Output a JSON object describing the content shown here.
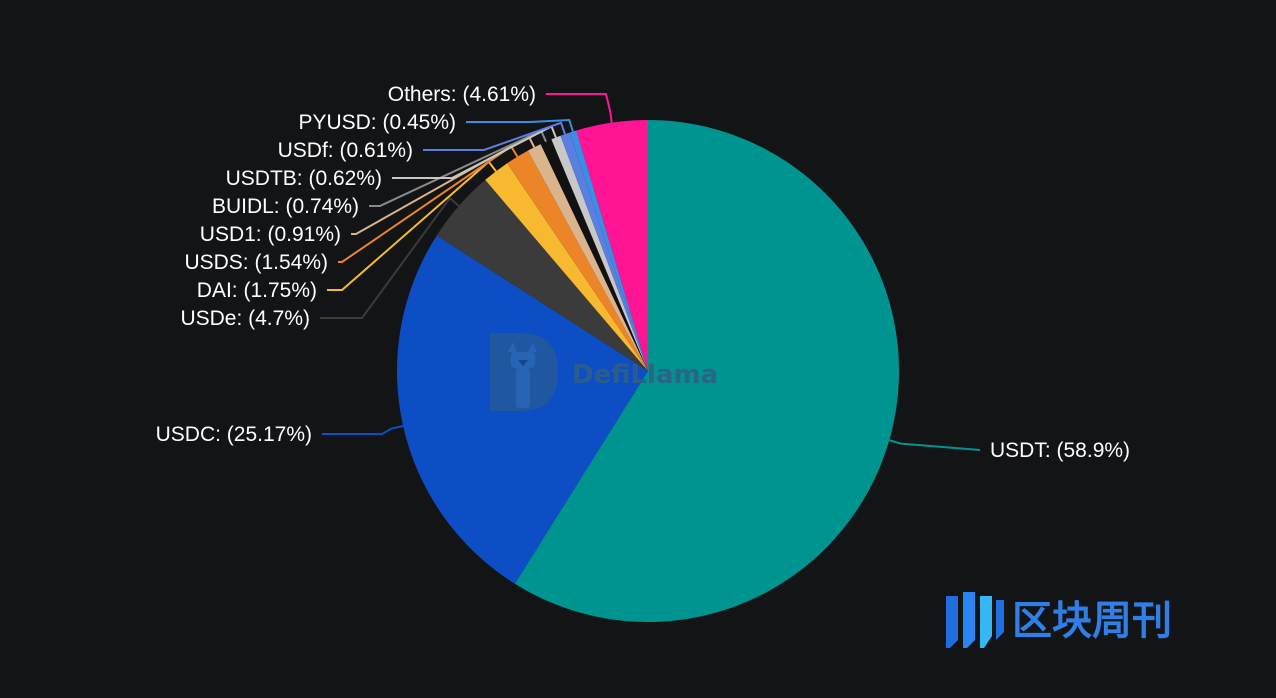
{
  "chart_data": {
    "type": "pie",
    "slices": [
      {
        "label": "USDT",
        "value": 58.9,
        "display": "USDT: (58.9%)",
        "color": "#009491"
      },
      {
        "label": "USDC",
        "value": 25.17,
        "display": "USDC: (25.17%)",
        "color": "#0e4ec4"
      },
      {
        "label": "USDe",
        "value": 4.7,
        "display": "USDe: (4.7%)",
        "color": "#3b3b3b"
      },
      {
        "label": "DAI",
        "value": 1.75,
        "display": "DAI: (1.75%)",
        "color": "#f6b92f"
      },
      {
        "label": "USDS",
        "value": 1.54,
        "display": "USDS: (1.54%)",
        "color": "#ec8428"
      },
      {
        "label": "USD1",
        "value": 0.91,
        "display": "USD1: (0.91%)",
        "color": "#dcb48c"
      },
      {
        "label": "BUIDL",
        "value": 0.74,
        "display": "BUIDL: (0.74%)",
        "color": "#111111"
      },
      {
        "label": "USDTB",
        "value": 0.62,
        "display": "USDTB: (0.62%)",
        "color": "#c8c8c8"
      },
      {
        "label": "USDf",
        "value": 0.61,
        "display": "USDf: (0.61%)",
        "color": "#5a7fe0"
      },
      {
        "label": "PYUSD",
        "value": 0.45,
        "display": "PYUSD: (0.45%)",
        "color": "#3a8ee6"
      },
      {
        "label": "Others",
        "value": 4.61,
        "display": "Others: (4.61%)",
        "color": "#ff1493"
      }
    ],
    "legend": "none"
  },
  "watermark": {
    "text": "DefiLlama",
    "icon": "llama-icon"
  },
  "source_mark": {
    "text": "区块周刊",
    "icon": "bars-logo-icon"
  }
}
